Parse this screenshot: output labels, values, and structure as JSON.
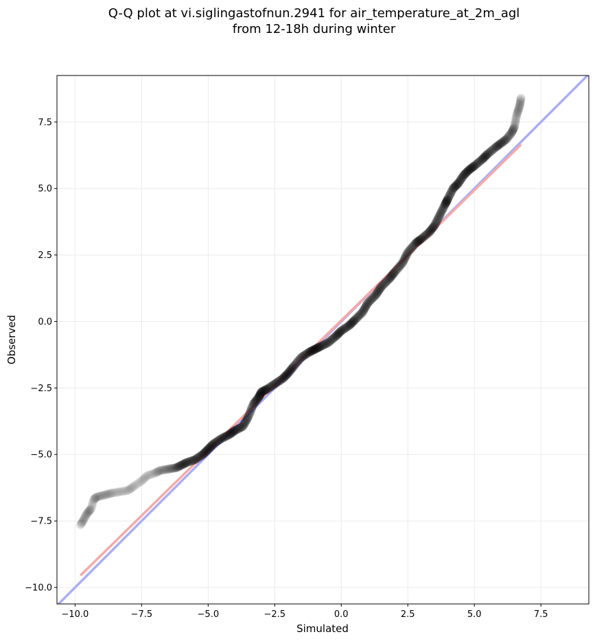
{
  "chart_data": {
    "type": "scatter",
    "title_lines": [
      "Q-Q plot at vi.siglingastofnun.2941 for air_temperature_at_2m_agl",
      "from 12-18h during winter"
    ],
    "xlabel": "Simulated",
    "ylabel": "Observed",
    "xlim": [
      -10.68,
      9.3
    ],
    "ylim": [
      -10.62,
      9.25
    ],
    "xticks": [
      -10.0,
      -7.5,
      -5.0,
      -2.5,
      0.0,
      2.5,
      5.0,
      7.5
    ],
    "yticks": [
      -10.0,
      -7.5,
      -5.0,
      -2.5,
      0.0,
      2.5,
      5.0,
      7.5
    ],
    "xtick_labels": [
      "−10.0",
      "−7.5",
      "−5.0",
      "−2.5",
      "0.0",
      "2.5",
      "5.0",
      "7.5"
    ],
    "ytick_labels": [
      "−10.0",
      "−7.5",
      "−5.0",
      "−2.5",
      "0.0",
      "2.5",
      "5.0",
      "7.5"
    ],
    "grid": true,
    "quantile_points": {
      "color": "#000000",
      "x": [
        -9.8,
        -9.7,
        -9.6,
        -9.5,
        -9.4,
        -9.3,
        -9.2,
        -9.0,
        -8.8,
        -8.6,
        -8.3,
        -8.0,
        -7.8,
        -7.5,
        -7.3,
        -7.0,
        -6.8,
        -6.5,
        -6.2,
        -6.0,
        -5.8,
        -5.5,
        -5.2,
        -5.0,
        -4.8,
        -4.5,
        -4.2,
        -4.0,
        -3.7,
        -3.5,
        -3.3,
        -3.1,
        -3.0,
        -2.8,
        -2.5,
        -2.2,
        -2.0,
        -1.8,
        -1.5,
        -1.2,
        -1.0,
        -0.8,
        -0.5,
        -0.2,
        0.0,
        0.3,
        0.5,
        0.8,
        1.0,
        1.3,
        1.5,
        1.8,
        2.0,
        2.3,
        2.5,
        2.8,
        3.0,
        3.3,
        3.5,
        3.7,
        3.9,
        4.0,
        4.2,
        4.4,
        4.6,
        4.8,
        5.0,
        5.3,
        5.5,
        5.8,
        6.0,
        6.2,
        6.4,
        6.5,
        6.6,
        6.7,
        6.75
      ],
      "y": [
        -7.65,
        -7.5,
        -7.3,
        -7.15,
        -7.05,
        -6.7,
        -6.6,
        -6.55,
        -6.5,
        -6.45,
        -6.4,
        -6.35,
        -6.2,
        -6.0,
        -5.8,
        -5.7,
        -5.6,
        -5.55,
        -5.5,
        -5.4,
        -5.3,
        -5.2,
        -5.0,
        -4.8,
        -4.6,
        -4.4,
        -4.25,
        -4.1,
        -3.95,
        -3.6,
        -3.1,
        -2.85,
        -2.65,
        -2.55,
        -2.35,
        -2.15,
        -1.95,
        -1.7,
        -1.35,
        -1.15,
        -1.05,
        -0.95,
        -0.8,
        -0.55,
        -0.35,
        -0.15,
        0.05,
        0.35,
        0.7,
        1.0,
        1.3,
        1.6,
        1.85,
        2.2,
        2.6,
        2.95,
        3.1,
        3.35,
        3.6,
        4.0,
        4.4,
        4.6,
        5.0,
        5.2,
        5.5,
        5.7,
        5.85,
        6.1,
        6.3,
        6.55,
        6.7,
        6.85,
        7.1,
        7.3,
        7.8,
        8.1,
        8.4
      ]
    },
    "reference_lines": [
      {
        "color": "#a9aef5",
        "x": [
          -10.68,
          9.3
        ],
        "y": [
          -10.68,
          9.3
        ]
      },
      {
        "color": "#f5a9a9",
        "x": [
          -9.8,
          6.75
        ],
        "y": [
          -9.55,
          6.65
        ]
      }
    ]
  }
}
